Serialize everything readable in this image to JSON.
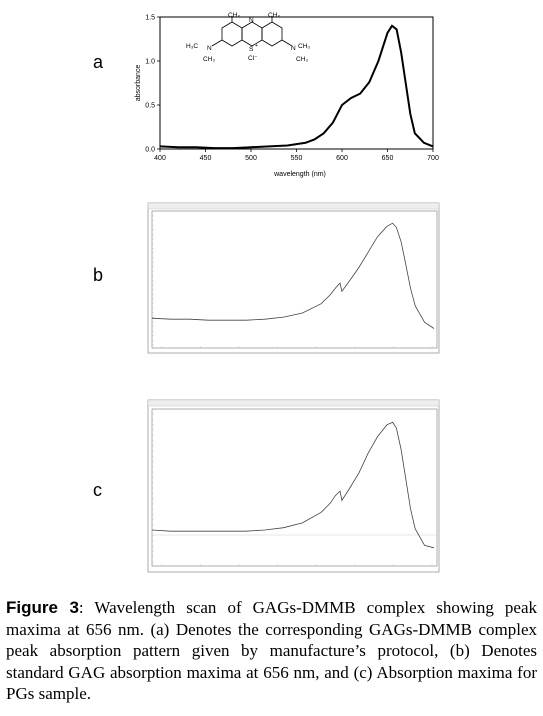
{
  "chart_data": [
    {
      "panel": "a",
      "type": "line",
      "xlabel": "wavelength (nm)",
      "ylabel": "absorbance",
      "xlim": [
        400,
        700
      ],
      "ylim": [
        0.0,
        1.5
      ],
      "x_ticks": [
        "400",
        "450",
        "500",
        "550",
        "600",
        "650",
        "700"
      ],
      "y_ticks": [
        "0.0",
        "0.5",
        "1.0",
        "1.5"
      ],
      "x": [
        400,
        420,
        440,
        460,
        480,
        500,
        520,
        540,
        560,
        570,
        580,
        590,
        600,
        610,
        620,
        630,
        640,
        650,
        655,
        660,
        665,
        670,
        675,
        680,
        690,
        700
      ],
      "y": [
        0.03,
        0.02,
        0.02,
        0.01,
        0.01,
        0.02,
        0.03,
        0.04,
        0.07,
        0.11,
        0.18,
        0.3,
        0.5,
        0.58,
        0.63,
        0.76,
        1.0,
        1.32,
        1.4,
        1.36,
        1.1,
        0.75,
        0.4,
        0.18,
        0.07,
        0.03
      ]
    },
    {
      "panel": "b",
      "type": "line",
      "xlim": [
        400,
        700
      ],
      "x": [
        400,
        420,
        440,
        460,
        480,
        500,
        520,
        540,
        560,
        580,
        590,
        595,
        600,
        602,
        610,
        620,
        630,
        640,
        650,
        656,
        660,
        665,
        670,
        675,
        680,
        690,
        700
      ],
      "y": [
        0.26,
        0.25,
        0.25,
        0.24,
        0.24,
        0.24,
        0.25,
        0.27,
        0.31,
        0.4,
        0.49,
        0.55,
        0.6,
        0.52,
        0.62,
        0.75,
        0.9,
        1.05,
        1.15,
        1.18,
        1.14,
        1.0,
        0.78,
        0.55,
        0.38,
        0.22,
        0.16
      ]
    },
    {
      "panel": "c",
      "type": "line",
      "xlim": [
        400,
        700
      ],
      "x": [
        400,
        420,
        440,
        460,
        480,
        500,
        520,
        540,
        560,
        580,
        590,
        595,
        600,
        602,
        610,
        620,
        630,
        640,
        650,
        656,
        660,
        665,
        670,
        675,
        680,
        690,
        700
      ],
      "y": [
        0.27,
        0.26,
        0.26,
        0.26,
        0.26,
        0.26,
        0.27,
        0.29,
        0.33,
        0.42,
        0.5,
        0.56,
        0.6,
        0.52,
        0.62,
        0.75,
        0.92,
        1.06,
        1.16,
        1.18,
        1.13,
        0.95,
        0.7,
        0.45,
        0.28,
        0.14,
        0.12
      ]
    }
  ],
  "panels": {
    "a": "a",
    "b": "b",
    "c": "c"
  },
  "structure": {
    "ch3": "CH₃",
    "n": "N",
    "s": "S",
    "plus": "+",
    "cl": "Cl⁻",
    "h3c": "H₃C",
    "left_ch3_bottom": "CH₃",
    "right_ch3_top": "CH₃",
    "right_ch3_bottom": "CH₃"
  },
  "caption": {
    "label": "Figure 3",
    "text": ": Wavelength scan of GAGs-DMMB complex showing peak maxima at 656 nm. (a) Denotes the corresponding GAGs-DMMB complex peak absorption pattern given by manufacture’s protocol, (b) Denotes standard GAG absorption maxima at 656 nm, and (c) Absorption maxima for PGs sample."
  }
}
